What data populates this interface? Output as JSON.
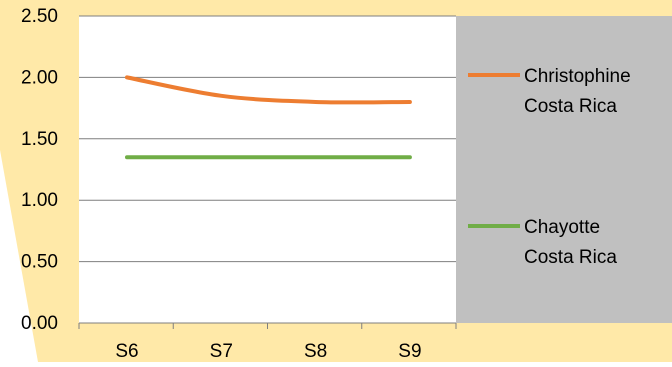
{
  "colors": {
    "background": "#ffe9a8",
    "plot_background": "#ffffff",
    "legend_background": "#c0c0c0",
    "gridline": "#7f7f7f",
    "text": "#000000"
  },
  "chart_data": {
    "type": "line",
    "title": "",
    "xlabel": "",
    "ylabel": "",
    "categories": [
      "S6",
      "S7",
      "S8",
      "S9"
    ],
    "ylim": [
      0,
      2.5
    ],
    "yticks": [
      "0.00",
      "0.50",
      "1.00",
      "1.50",
      "2.00",
      "2.50"
    ],
    "grid": true,
    "legend_position": "right",
    "series": [
      {
        "name": "Christophine Costa Rica",
        "legend_lines": [
          "Christophine",
          "Costa Rica"
        ],
        "values": [
          2.0,
          1.85,
          1.8,
          1.8
        ],
        "color": "#ed7d31",
        "smooth": true
      },
      {
        "name": "Chayotte Costa Rica",
        "legend_lines": [
          "Chayotte",
          "Costa Rica"
        ],
        "values": [
          1.35,
          1.35,
          1.35,
          1.35
        ],
        "color": "#70ad47",
        "smooth": false
      }
    ]
  }
}
